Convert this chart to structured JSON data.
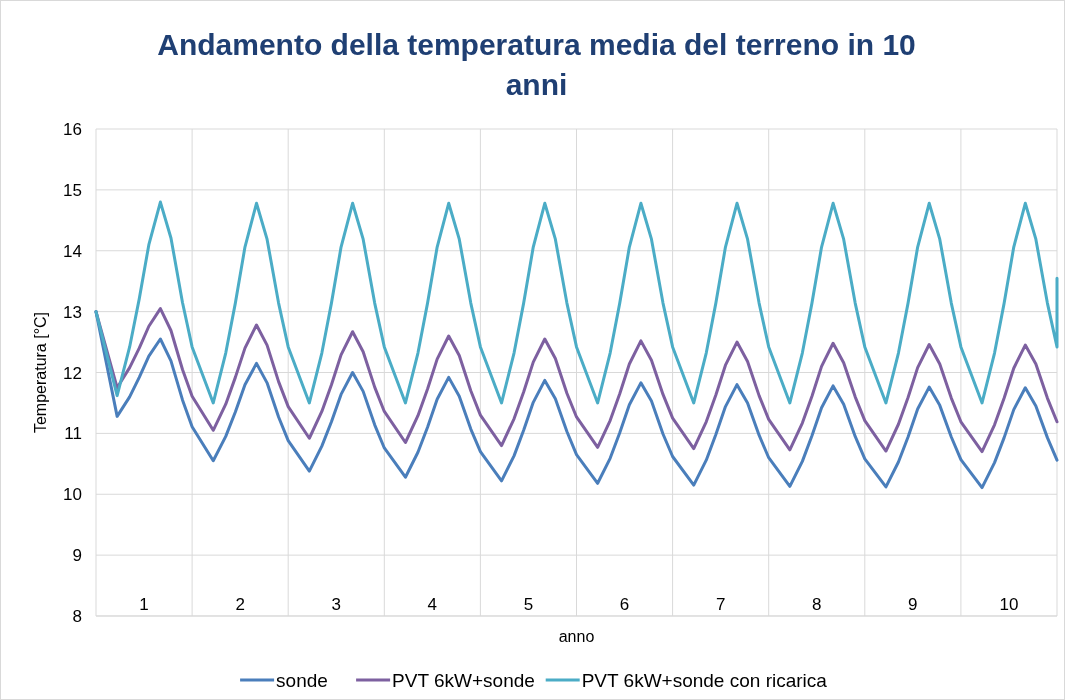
{
  "chart_data": {
    "type": "line",
    "title": "Andamento della temperatura media del terreno in 10 anni",
    "xlabel": "anno",
    "ylabel": "Temperatura [°C]",
    "x": [
      0.5,
      0.72,
      0.85,
      0.95,
      1.05,
      1.17,
      1.28,
      1.4,
      1.5,
      1.72,
      1.85,
      1.95,
      2.05,
      2.17,
      2.28,
      2.4,
      2.5,
      2.72,
      2.85,
      2.95,
      3.05,
      3.17,
      3.28,
      3.4,
      3.5,
      3.72,
      3.85,
      3.95,
      4.05,
      4.17,
      4.28,
      4.4,
      4.5,
      4.72,
      4.85,
      4.95,
      5.05,
      5.17,
      5.28,
      5.4,
      5.5,
      5.72,
      5.85,
      5.95,
      6.05,
      6.17,
      6.28,
      6.4,
      6.5,
      6.72,
      6.85,
      6.95,
      7.05,
      7.17,
      7.28,
      7.4,
      7.5,
      7.72,
      7.85,
      7.95,
      8.05,
      8.17,
      8.28,
      8.4,
      8.5,
      8.72,
      8.85,
      8.95,
      9.05,
      9.17,
      9.28,
      9.4,
      9.5,
      9.72,
      9.85,
      9.95,
      10.05,
      10.17,
      10.28,
      10.4,
      10.5
    ],
    "xlim": [
      0.5,
      10.5
    ],
    "xticks": [
      {
        "value": 0.5,
        "label": null
      },
      1,
      {
        "value": 1.5,
        "label": null
      },
      2,
      {
        "value": 2.5,
        "label": null
      },
      3,
      {
        "value": 3.5,
        "label": null
      },
      4,
      {
        "value": 4.5,
        "label": null
      },
      5,
      {
        "value": 5.5,
        "label": null
      },
      6,
      {
        "value": 6.5,
        "label": null
      },
      7,
      {
        "value": 7.5,
        "label": null
      },
      8,
      {
        "value": 8.5,
        "label": null
      },
      9,
      {
        "value": 9.5,
        "label": null
      },
      10,
      {
        "value": 10.5,
        "label": null
      }
    ],
    "ylim": [
      8,
      16
    ],
    "yticks": [
      8,
      9,
      10,
      11,
      12,
      13,
      14,
      15,
      16
    ],
    "grid": true,
    "legend": "bottom",
    "marker": "none",
    "line_style": "solid",
    "series": [
      {
        "name": "sonde",
        "color": "#4a7ebb",
        "values": [
          13.0,
          11.28,
          11.6,
          11.92,
          12.27,
          12.55,
          12.19,
          11.55,
          11.11,
          10.55,
          10.95,
          11.35,
          11.8,
          12.15,
          11.83,
          11.27,
          10.88,
          10.38,
          10.79,
          11.19,
          11.64,
          12.0,
          11.69,
          11.14,
          10.76,
          10.28,
          10.69,
          11.1,
          11.56,
          11.92,
          11.61,
          11.07,
          10.7,
          10.22,
          10.63,
          11.05,
          11.51,
          11.87,
          11.57,
          11.03,
          10.65,
          10.18,
          10.59,
          11.01,
          11.47,
          11.83,
          11.53,
          10.99,
          10.62,
          10.15,
          10.56,
          10.98,
          11.44,
          11.8,
          11.5,
          10.97,
          10.6,
          10.13,
          10.54,
          10.96,
          11.42,
          11.78,
          11.48,
          10.95,
          10.58,
          10.12,
          10.53,
          10.94,
          11.4,
          11.76,
          11.46,
          10.94,
          10.57,
          10.11,
          10.52,
          10.93,
          11.39,
          11.75,
          11.45,
          10.93,
          10.56
        ]
      },
      {
        "name": "PVT 6kW+sonde",
        "color": "#7d60a0",
        "values": [
          13.0,
          11.75,
          12.08,
          12.4,
          12.76,
          13.05,
          12.69,
          12.05,
          11.61,
          11.05,
          11.48,
          11.92,
          12.4,
          12.78,
          12.45,
          11.85,
          11.44,
          10.92,
          11.36,
          11.8,
          12.29,
          12.67,
          12.34,
          11.76,
          11.36,
          10.85,
          11.29,
          11.73,
          12.22,
          12.6,
          12.28,
          11.7,
          11.3,
          10.8,
          11.24,
          11.68,
          12.17,
          12.55,
          12.23,
          11.66,
          11.27,
          10.77,
          11.21,
          11.65,
          12.14,
          12.52,
          12.2,
          11.64,
          11.25,
          10.75,
          11.19,
          11.63,
          12.12,
          12.5,
          12.18,
          11.62,
          11.23,
          10.73,
          11.17,
          11.61,
          12.1,
          12.48,
          12.16,
          11.6,
          11.21,
          10.71,
          11.15,
          11.59,
          12.08,
          12.46,
          12.14,
          11.58,
          11.19,
          10.7,
          11.14,
          11.58,
          12.07,
          12.45,
          12.14,
          11.58,
          11.19
        ]
      },
      {
        "name": "PVT 6kW+sonde con ricarica",
        "color": "#4bacc6",
        "x": [
          0.5,
          0.72,
          0.85,
          0.95,
          1.05,
          1.17,
          1.28,
          1.4,
          1.5,
          1.72,
          1.85,
          1.95,
          2.05,
          2.17,
          2.28,
          2.4,
          2.5,
          2.72,
          2.85,
          2.95,
          3.05,
          3.17,
          3.28,
          3.4,
          3.5,
          3.72,
          3.85,
          3.95,
          4.05,
          4.17,
          4.28,
          4.4,
          4.5,
          4.72,
          4.85,
          4.95,
          5.05,
          5.17,
          5.28,
          5.4,
          5.5,
          5.72,
          5.85,
          5.95,
          6.05,
          6.17,
          6.28,
          6.4,
          6.5,
          6.72,
          6.85,
          6.95,
          7.05,
          7.17,
          7.28,
          7.4,
          7.5,
          7.72,
          7.85,
          7.95,
          8.05,
          8.17,
          8.28,
          8.4,
          8.5,
          8.72,
          8.85,
          8.95,
          9.05,
          9.17,
          9.28,
          9.4,
          9.5,
          9.72,
          9.85,
          9.95,
          10.05,
          10.17,
          10.28,
          10.4,
          10.5,
          10.5
        ],
        "values": [
          13.0,
          11.62,
          12.42,
          13.21,
          14.1,
          14.8,
          14.21,
          13.15,
          12.42,
          11.5,
          12.32,
          13.14,
          14.06,
          14.78,
          14.19,
          13.14,
          12.42,
          11.5,
          12.32,
          13.14,
          14.06,
          14.78,
          14.19,
          13.14,
          12.42,
          11.5,
          12.32,
          13.14,
          14.06,
          14.78,
          14.19,
          13.14,
          12.42,
          11.5,
          12.32,
          13.14,
          14.06,
          14.78,
          14.19,
          13.14,
          12.42,
          11.5,
          12.32,
          13.14,
          14.06,
          14.78,
          14.19,
          13.14,
          12.42,
          11.5,
          12.32,
          13.14,
          14.06,
          14.78,
          14.19,
          13.14,
          12.42,
          11.5,
          12.32,
          13.14,
          14.06,
          14.78,
          14.19,
          13.14,
          12.42,
          11.5,
          12.32,
          13.14,
          14.06,
          14.78,
          14.19,
          13.14,
          12.42,
          11.5,
          12.32,
          13.14,
          14.06,
          14.78,
          14.19,
          13.14,
          12.42,
          13.55
        ]
      }
    ]
  }
}
